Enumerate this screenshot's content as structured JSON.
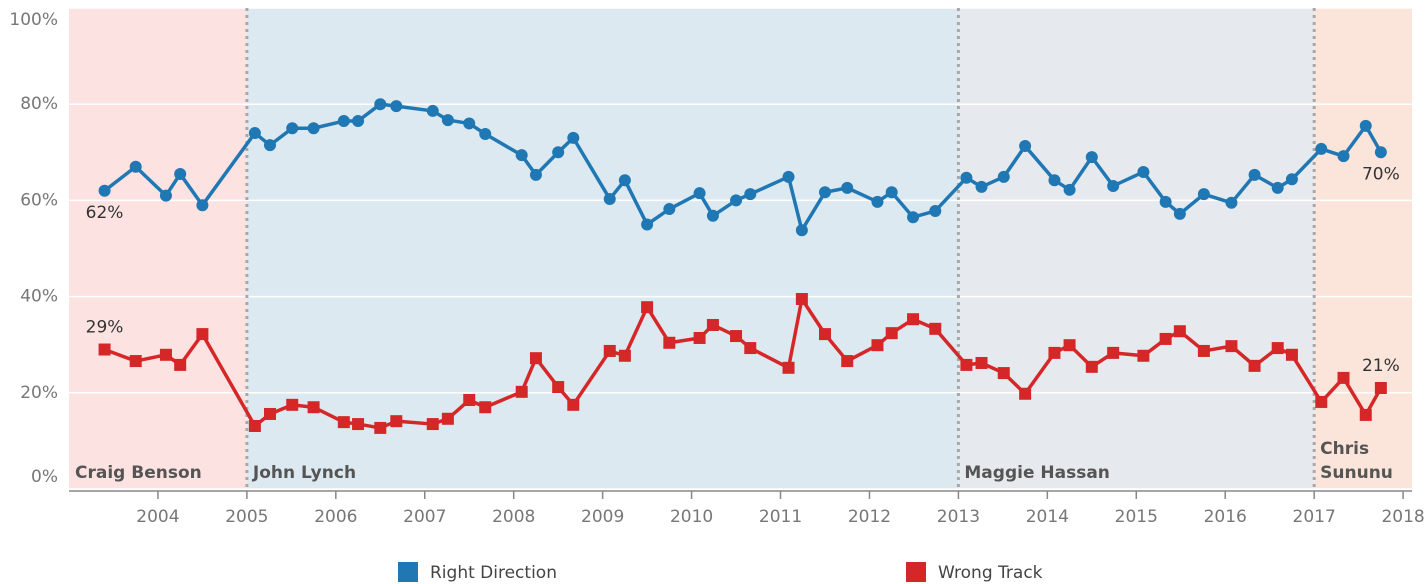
{
  "chart_data": {
    "type": "line",
    "x": [
      2003.4,
      2003.75,
      2004.09,
      2004.25,
      2004.5,
      2005.09,
      2005.26,
      2005.51,
      2005.75,
      2006.09,
      2006.25,
      2006.5,
      2006.68,
      2007.09,
      2007.26,
      2007.5,
      2007.68,
      2008.09,
      2008.25,
      2008.5,
      2008.67,
      2009.08,
      2009.25,
      2009.5,
      2009.75,
      2010.09,
      2010.24,
      2010.5,
      2010.66,
      2011.09,
      2011.24,
      2011.5,
      2011.75,
      2012.09,
      2012.25,
      2012.49,
      2012.74,
      2013.09,
      2013.26,
      2013.51,
      2013.75,
      2014.08,
      2014.25,
      2014.5,
      2014.74,
      2015.08,
      2015.33,
      2015.49,
      2015.76,
      2016.07,
      2016.33,
      2016.59,
      2016.75,
      2017.08,
      2017.33,
      2017.58,
      2017.75
    ],
    "series": [
      {
        "name": "Right Direction",
        "color": "#1f77b4",
        "values": [
          62,
          67,
          61,
          65.5,
          59,
          74,
          71.5,
          75,
          75,
          76.5,
          76.5,
          80,
          79.6,
          78.6,
          76.7,
          76,
          73.8,
          69.4,
          65.3,
          70,
          73,
          60.3,
          64.2,
          55,
          58.2,
          61.5,
          56.8,
          60,
          61.3,
          64.9,
          53.8,
          61.7,
          62.6,
          59.7,
          61.7,
          56.5,
          57.8,
          64.7,
          62.8,
          64.9,
          71.3,
          64.2,
          62.2,
          69,
          63,
          65.9,
          59.7,
          57.2,
          61.3,
          59.5,
          65.3,
          62.6,
          64.4,
          70.7,
          69.2,
          75.5,
          70
        ],
        "value_labels": [
          "62%",
          null,
          null,
          null,
          null,
          null,
          null,
          null,
          null,
          null,
          null,
          null,
          null,
          null,
          null,
          null,
          null,
          null,
          null,
          null,
          null,
          null,
          null,
          null,
          null,
          null,
          null,
          null,
          null,
          null,
          null,
          null,
          null,
          null,
          null,
          null,
          null,
          null,
          null,
          null,
          null,
          null,
          null,
          null,
          null,
          null,
          null,
          null,
          null,
          null,
          null,
          null,
          null,
          null,
          null,
          null,
          "70%"
        ]
      },
      {
        "name": "Wrong Track",
        "color": "#d62728",
        "values": [
          29,
          26.6,
          27.9,
          25.8,
          32.2,
          13.1,
          15.6,
          17.5,
          17,
          13.9,
          13.5,
          12.7,
          14.1,
          13.5,
          14.6,
          18.5,
          17,
          20.2,
          27.2,
          21.2,
          17.5,
          28.7,
          27.7,
          37.8,
          30.4,
          31.4,
          34.1,
          31.8,
          29.3,
          25.2,
          39.5,
          32.2,
          26.6,
          29.9,
          32.4,
          35.3,
          33.3,
          25.8,
          26.2,
          24.1,
          19.8,
          28.3,
          29.9,
          25.4,
          28.3,
          27.7,
          31.2,
          32.8,
          28.7,
          29.7,
          25.6,
          29.3,
          27.9,
          18.1,
          23.1,
          15.4,
          21
        ],
        "value_labels": [
          "29%",
          null,
          null,
          null,
          null,
          null,
          null,
          null,
          null,
          null,
          null,
          null,
          null,
          null,
          null,
          null,
          null,
          null,
          null,
          null,
          null,
          null,
          null,
          null,
          null,
          null,
          null,
          null,
          null,
          null,
          null,
          null,
          null,
          null,
          null,
          null,
          null,
          null,
          null,
          null,
          null,
          null,
          null,
          null,
          null,
          null,
          null,
          null,
          null,
          null,
          null,
          null,
          null,
          null,
          null,
          null,
          "21%"
        ]
      }
    ],
    "periods": [
      {
        "name": "Craig Benson",
        "color": "#fde2e2"
      },
      {
        "name": "John Lynch",
        "start": 2005,
        "color": "#dde9f0"
      },
      {
        "name": "Maggie Hassan",
        "start": 2013,
        "color": "#e6eaee"
      },
      {
        "name": "Chris Sununu",
        "start": 2017,
        "color": "#fbe5db"
      }
    ],
    "xlim": [
      2003,
      2018.1
    ],
    "xticks": [
      2004,
      2005,
      2006,
      2007,
      2008,
      2009,
      2010,
      2011,
      2012,
      2013,
      2014,
      2015,
      2016,
      2017,
      2018
    ],
    "ylim": [
      0,
      100
    ],
    "yticks": [
      {
        "value": 0,
        "label": "0%"
      },
      {
        "value": 20,
        "label": "20%"
      },
      {
        "value": 40,
        "label": "40%"
      },
      {
        "value": 60,
        "label": "60%"
      },
      {
        "value": 80,
        "label": "80%"
      },
      {
        "value": 100,
        "label": "100%"
      }
    ],
    "grid": true,
    "legend": "bottom"
  }
}
